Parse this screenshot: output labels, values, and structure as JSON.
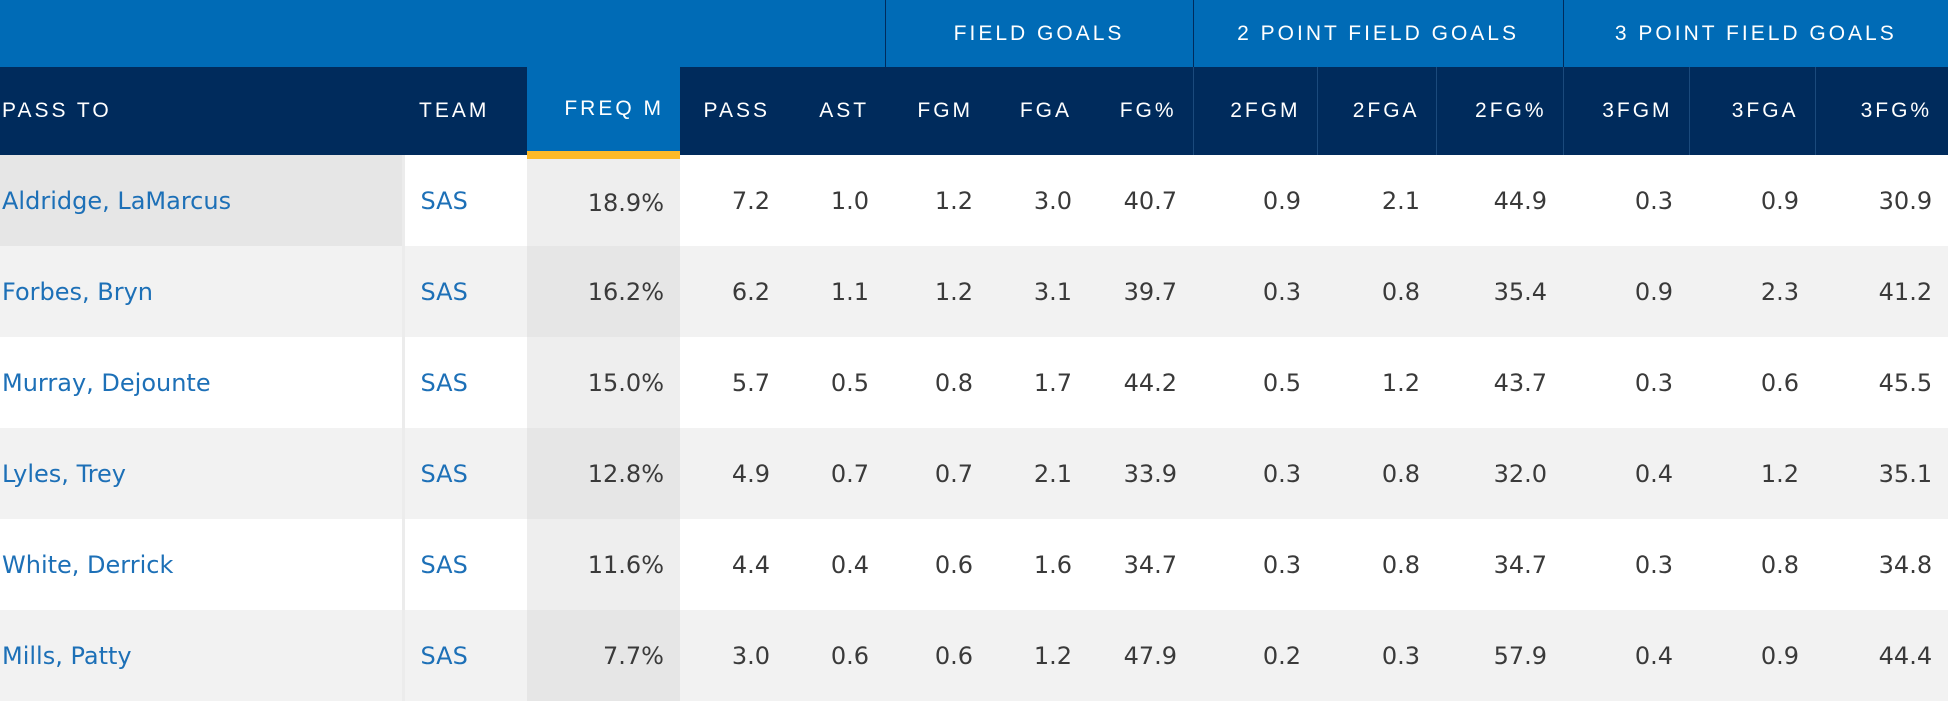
{
  "group_headers": {
    "field_goals": "FIELD GOALS",
    "two_point": "2 POINT FIELD GOALS",
    "three_point": "3 POINT FIELD GOALS"
  },
  "columns": {
    "pass_to": "PASS TO",
    "team": "TEAM",
    "freq": "FREQ M",
    "pass": "PASS",
    "ast": "AST",
    "fgm": "FGM",
    "fga": "FGA",
    "fg_pct": "FG%",
    "fgm2": "2FGM",
    "fga2": "2FGA",
    "fg2_pct": "2FG%",
    "fgm3": "3FGM",
    "fga3": "3FGA",
    "fg3_pct": "3FG%"
  },
  "rows": [
    {
      "name": "Aldridge, LaMarcus",
      "team": "SAS",
      "freq": "18.9%",
      "pass": "7.2",
      "ast": "1.0",
      "fgm": "1.2",
      "fga": "3.0",
      "fg_pct": "40.7",
      "fgm2": "0.9",
      "fga2": "2.1",
      "fg2_pct": "44.9",
      "fgm3": "0.3",
      "fga3": "0.9",
      "fg3_pct": "30.9"
    },
    {
      "name": "Forbes, Bryn",
      "team": "SAS",
      "freq": "16.2%",
      "pass": "6.2",
      "ast": "1.1",
      "fgm": "1.2",
      "fga": "3.1",
      "fg_pct": "39.7",
      "fgm2": "0.3",
      "fga2": "0.8",
      "fg2_pct": "35.4",
      "fgm3": "0.9",
      "fga3": "2.3",
      "fg3_pct": "41.2"
    },
    {
      "name": "Murray, Dejounte",
      "team": "SAS",
      "freq": "15.0%",
      "pass": "5.7",
      "ast": "0.5",
      "fgm": "0.8",
      "fga": "1.7",
      "fg_pct": "44.2",
      "fgm2": "0.5",
      "fga2": "1.2",
      "fg2_pct": "43.7",
      "fgm3": "0.3",
      "fga3": "0.6",
      "fg3_pct": "45.5"
    },
    {
      "name": "Lyles, Trey",
      "team": "SAS",
      "freq": "12.8%",
      "pass": "4.9",
      "ast": "0.7",
      "fgm": "0.7",
      "fga": "2.1",
      "fg_pct": "33.9",
      "fgm2": "0.3",
      "fga2": "0.8",
      "fg2_pct": "32.0",
      "fgm3": "0.4",
      "fga3": "1.2",
      "fg3_pct": "35.1"
    },
    {
      "name": "White, Derrick",
      "team": "SAS",
      "freq": "11.6%",
      "pass": "4.4",
      "ast": "0.4",
      "fgm": "0.6",
      "fga": "1.6",
      "fg_pct": "34.7",
      "fgm2": "0.3",
      "fga2": "0.8",
      "fg2_pct": "34.7",
      "fgm3": "0.3",
      "fga3": "0.8",
      "fg3_pct": "34.8"
    },
    {
      "name": "Mills, Patty",
      "team": "SAS",
      "freq": "7.7%",
      "pass": "3.0",
      "ast": "0.6",
      "fgm": "0.6",
      "fga": "1.2",
      "fg_pct": "47.9",
      "fgm2": "0.2",
      "fga2": "0.3",
      "fg2_pct": "57.9",
      "fgm3": "0.4",
      "fga3": "0.9",
      "fg3_pct": "44.4"
    }
  ],
  "colors": {
    "group_header_bg": "#006bb6",
    "column_header_bg": "#002b5c",
    "sort_indicator": "#fdb927",
    "link": "#1d70b7"
  }
}
